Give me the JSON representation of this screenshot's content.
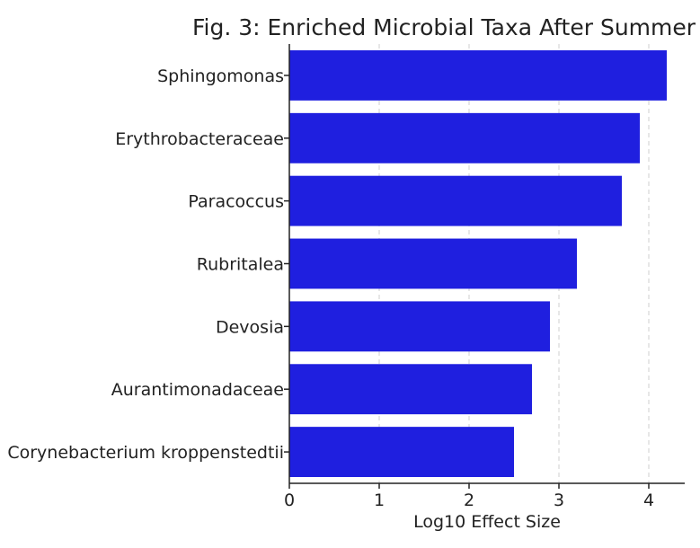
{
  "chart_data": {
    "type": "bar",
    "orientation": "horizontal",
    "title": "Fig. 3: Enriched Microbial Taxa After Summer",
    "xlabel": "Log10 Effect Size",
    "ylabel": "",
    "categories": [
      "Sphingomonas",
      "Erythrobacteraceae",
      "Paracoccus",
      "Rubritalea",
      "Devosia",
      "Aurantimonadaceae",
      "Corynebacterium kroppenstedtii"
    ],
    "values": [
      4.2,
      3.9,
      3.7,
      3.2,
      2.9,
      2.7,
      2.5
    ],
    "xticks": [
      "0",
      "1",
      "2",
      "3",
      "4"
    ],
    "xlim": [
      0,
      4.4
    ],
    "grid": "vertical, dashed",
    "legend": "none",
    "bar_color": "#1f1fdf"
  }
}
